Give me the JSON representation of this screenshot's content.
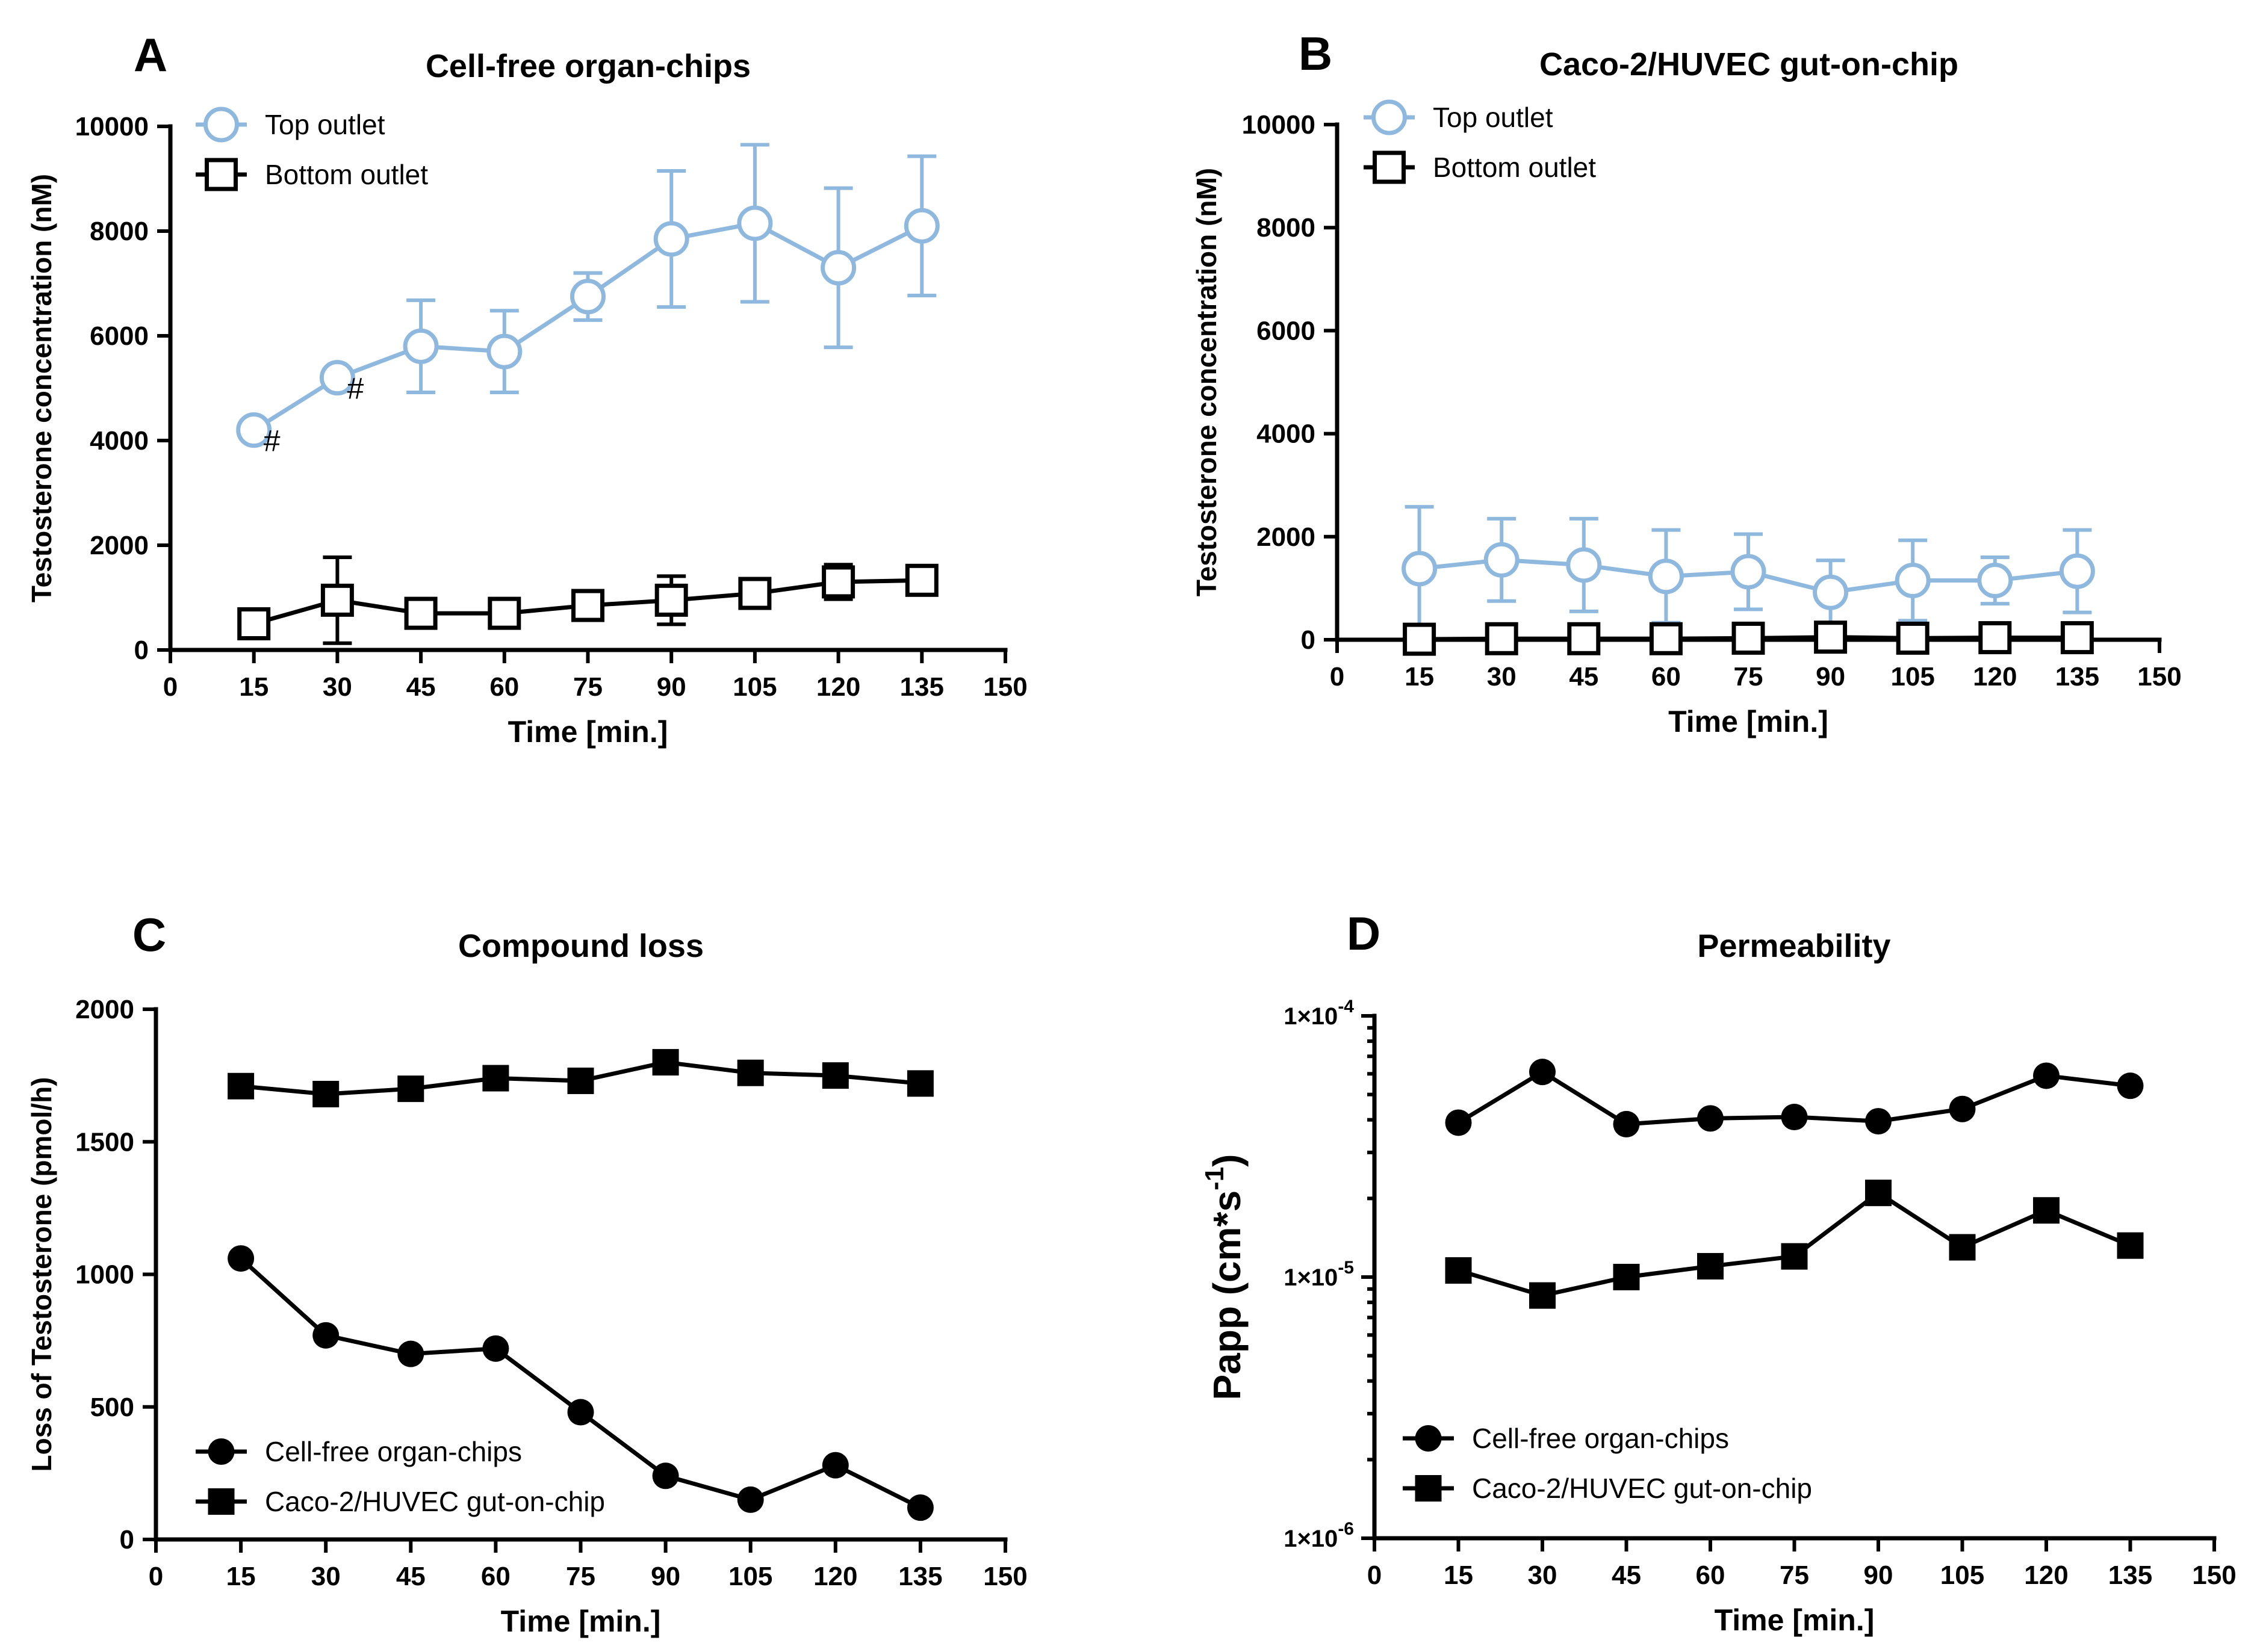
{
  "colors": {
    "top": "#8fb8df",
    "black": "#000000"
  },
  "chart_data": [
    {
      "panel": "A",
      "type": "line",
      "title": "Cell-free organ-chips",
      "xlabel": "Time [min.]",
      "ylabel": "Testosterone concentration (nM)",
      "xlim": [
        0,
        150
      ],
      "ylim": [
        0,
        10000
      ],
      "x_ticks": [
        "0",
        "15",
        "30",
        "45",
        "60",
        "75",
        "90",
        "105",
        "120",
        "135",
        "150"
      ],
      "y_ticks": [
        "0",
        "2000",
        "4000",
        "6000",
        "8000",
        "10000"
      ],
      "legend": {
        "placement": "top-left"
      },
      "annotations": [
        "#",
        "#"
      ],
      "series": [
        {
          "name": "Top outlet",
          "marker": "open-circle",
          "color": "#8fb8df",
          "x": [
            15,
            30,
            45,
            60,
            75,
            90,
            105,
            120,
            135
          ],
          "values": [
            4200,
            5200,
            5800,
            5700,
            6750,
            7850,
            8150,
            7300,
            8100
          ],
          "err": [
            0,
            0,
            880,
            780,
            450,
            1300,
            1500,
            1520,
            1330
          ]
        },
        {
          "name": "Bottom outlet",
          "marker": "open-square",
          "color": "#000000",
          "x": [
            15,
            30,
            45,
            60,
            75,
            90,
            105,
            120,
            135
          ],
          "values": [
            500,
            950,
            700,
            700,
            850,
            950,
            1080,
            1300,
            1330
          ],
          "err": [
            130,
            820,
            0,
            0,
            0,
            460,
            0,
            330,
            0
          ]
        }
      ]
    },
    {
      "panel": "B",
      "type": "line",
      "title": "Caco-2/HUVEC gut-on-chip",
      "xlabel": "Time [min.]",
      "ylabel": "Testosterone concentration (nM)",
      "xlim": [
        0,
        150
      ],
      "ylim": [
        0,
        10000
      ],
      "x_ticks": [
        "0",
        "15",
        "30",
        "45",
        "60",
        "75",
        "90",
        "105",
        "120",
        "135",
        "150"
      ],
      "y_ticks": [
        "0",
        "2000",
        "4000",
        "6000",
        "8000",
        "10000"
      ],
      "legend": {
        "placement": "top-left"
      },
      "series": [
        {
          "name": "Top outlet",
          "marker": "open-circle",
          "color": "#8fb8df",
          "x": [
            15,
            30,
            45,
            60,
            75,
            90,
            105,
            120,
            135
          ],
          "values": [
            1380,
            1550,
            1450,
            1230,
            1320,
            920,
            1150,
            1150,
            1330
          ],
          "err": [
            1200,
            800,
            900,
            900,
            730,
            620,
            780,
            450,
            800
          ]
        },
        {
          "name": "Bottom outlet",
          "marker": "open-square",
          "color": "#000000",
          "x": [
            15,
            30,
            45,
            60,
            75,
            90,
            105,
            120,
            135
          ],
          "values": [
            10,
            20,
            20,
            20,
            30,
            50,
            30,
            40,
            40
          ],
          "err": [
            0,
            0,
            0,
            0,
            0,
            0,
            0,
            0,
            0
          ]
        }
      ]
    },
    {
      "panel": "C",
      "type": "line",
      "title": "Compound loss",
      "xlabel": "Time [min.]",
      "ylabel": "Loss of Testosterone (pmol/h)",
      "xlim": [
        0,
        150
      ],
      "ylim": [
        0,
        2000
      ],
      "x_ticks": [
        "0",
        "15",
        "30",
        "45",
        "60",
        "75",
        "90",
        "105",
        "120",
        "135",
        "150"
      ],
      "y_ticks": [
        "0",
        "500",
        "1000",
        "1500",
        "2000"
      ],
      "legend": {
        "placement": "bottom-left"
      },
      "series": [
        {
          "name": "Cell-free organ-chips",
          "marker": "filled-circle",
          "color": "#000000",
          "x": [
            15,
            30,
            45,
            60,
            75,
            90,
            105,
            120,
            135
          ],
          "values": [
            1060,
            770,
            700,
            720,
            480,
            240,
            150,
            280,
            120
          ]
        },
        {
          "name": "Caco-2/HUVEC gut-on-chip",
          "marker": "filled-square",
          "color": "#000000",
          "x": [
            15,
            30,
            45,
            60,
            75,
            90,
            105,
            120,
            135
          ],
          "values": [
            1710,
            1680,
            1700,
            1740,
            1730,
            1800,
            1760,
            1750,
            1720
          ]
        }
      ]
    },
    {
      "panel": "D",
      "type": "line",
      "title": "Permeability",
      "xlabel": "Time [min.]",
      "ylabel_main": "Papp (cm*s",
      "ylabel_exp": "-1",
      "ylabel_close": ")",
      "yscale": "log",
      "xlim": [
        0,
        150
      ],
      "ylim": [
        1e-06,
        0.0001
      ],
      "x_ticks": [
        "0",
        "15",
        "30",
        "45",
        "60",
        "75",
        "90",
        "105",
        "120",
        "135",
        "150"
      ],
      "y_ticks": [
        {
          "base": "1×10",
          "exp": "-6",
          "value": 1e-06
        },
        {
          "base": "1×10",
          "exp": "-5",
          "value": 1e-05
        },
        {
          "base": "1×10",
          "exp": "-4",
          "value": 0.0001
        }
      ],
      "legend": {
        "placement": "bottom-left"
      },
      "series": [
        {
          "name": "Cell-free organ-chips",
          "marker": "filled-circle",
          "color": "#000000",
          "x": [
            15,
            30,
            45,
            60,
            75,
            90,
            105,
            120,
            135
          ],
          "values": [
            3.9e-05,
            6.1e-05,
            3.85e-05,
            4.05e-05,
            4.1e-05,
            3.95e-05,
            4.4e-05,
            5.9e-05,
            5.4e-05
          ]
        },
        {
          "name": "Caco-2/HUVEC gut-on-chip",
          "marker": "filled-square",
          "color": "#000000",
          "x": [
            15,
            30,
            45,
            60,
            75,
            90,
            105,
            120,
            135
          ],
          "values": [
            1.06e-05,
            8.5e-06,
            1e-05,
            1.1e-05,
            1.2e-05,
            2.1e-05,
            1.3e-05,
            1.8e-05,
            1.32e-05
          ]
        }
      ]
    }
  ]
}
